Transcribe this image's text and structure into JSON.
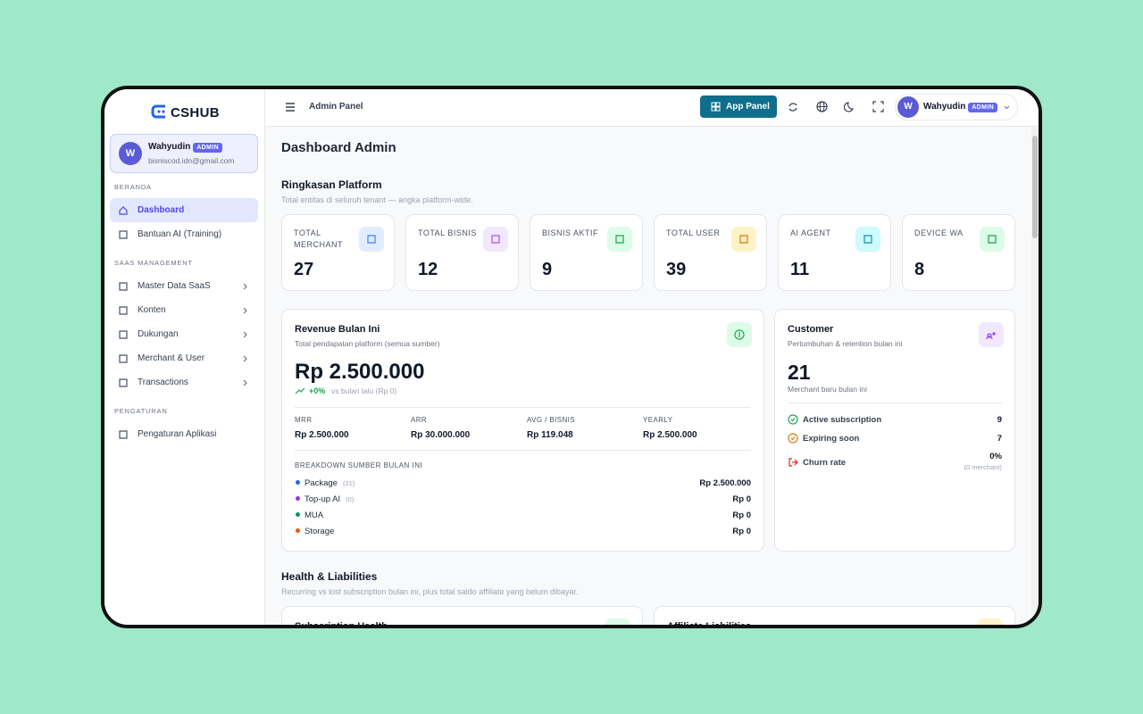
{
  "sidebar": {
    "brand": "CSHUB",
    "user": {
      "initial": "W",
      "name": "Wahyudin",
      "role": "ADMIN",
      "email": "bisniscod.idn@gmail.com"
    },
    "sections": [
      {
        "title": "BERANDA",
        "items": [
          {
            "label": "Dashboard",
            "active": true
          },
          {
            "label": "Bantuan AI (Training)"
          }
        ]
      },
      {
        "title": "SAAS MANAGEMENT",
        "items": [
          {
            "label": "Master Data SaaS",
            "expandable": true
          },
          {
            "label": "Konten",
            "expandable": true
          },
          {
            "label": "Dukungan",
            "expandable": true
          },
          {
            "label": "Merchant & User",
            "expandable": true
          },
          {
            "label": "Transactions",
            "expandable": true
          }
        ]
      },
      {
        "title": "PENGATURAN",
        "items": [
          {
            "label": "Pengaturan Aplikasi"
          }
        ]
      }
    ]
  },
  "topbar": {
    "title": "Admin Panel",
    "button": "App Panel",
    "user": {
      "initial": "W",
      "name": "Wahyudin",
      "role": "ADMIN"
    }
  },
  "page_title": "Dashboard Admin",
  "summary": {
    "title": "Ringkasan Platform",
    "subtitle": "Total entitas di seluruh tenant — angka platform-wide.",
    "stats": [
      {
        "label": "TOTAL MERCHANT",
        "value": 27
      },
      {
        "label": "TOTAL BISNIS",
        "value": 12
      },
      {
        "label": "BISNIS AKTIF",
        "value": 9
      },
      {
        "label": "TOTAL USER",
        "value": 39
      },
      {
        "label": "AI AGENT",
        "value": 11
      },
      {
        "label": "DEVICE WA",
        "value": 8
      }
    ]
  },
  "revenue": {
    "title": "Revenue Bulan Ini",
    "subtitle": "Total pendapatan platform (semua sumber)",
    "amount": "Rp 2.500.000",
    "change": "+0%",
    "change_note": "vs bulan lalu (Rp 0)",
    "metrics": [
      {
        "label": "MRR",
        "value": "Rp 2.500.000"
      },
      {
        "label": "ARR",
        "value": "Rp 30.000.000"
      },
      {
        "label": "AVG / BISNIS",
        "value": "Rp 119.048"
      },
      {
        "label": "YEARLY",
        "value": "Rp 2.500.000"
      }
    ],
    "breakdown_title": "BREAKDOWN SUMBER BULAN INI",
    "breakdown": [
      {
        "name": "Package",
        "count": "(21)",
        "value": "Rp 2.500.000"
      },
      {
        "name": "Top-up AI",
        "count": "(0)",
        "value": "Rp 0"
      },
      {
        "name": "MUA",
        "value": "Rp 0"
      },
      {
        "name": "Storage",
        "value": "Rp 0"
      }
    ]
  },
  "customer": {
    "title": "Customer",
    "subtitle": "Pertumbuhan & retention bulan ini",
    "value": 21,
    "caption": "Merchant baru bulan ini",
    "rows": [
      {
        "label": "Active subscription",
        "value": 9
      },
      {
        "label": "Expiring soon",
        "value": 7
      },
      {
        "label": "Churn rate",
        "value": "0%",
        "note": "(0 merchant)"
      }
    ]
  },
  "health": {
    "title": "Health & Liabilities",
    "subtitle": "Recurring vs lost subscription bulan ini, plus total saldo affiliate yang belum dibayar.",
    "cards": [
      "Subscription Health",
      "Affiliate Liabilities"
    ]
  }
}
